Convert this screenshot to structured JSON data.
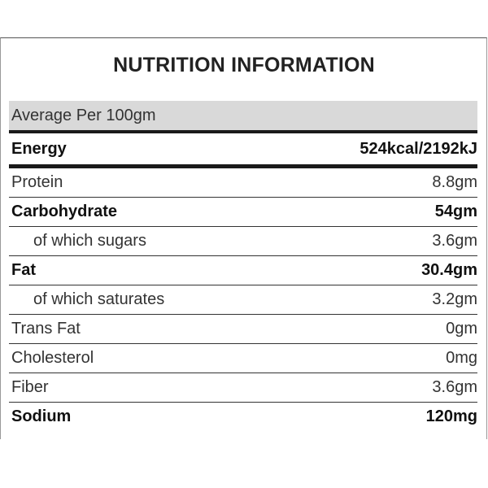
{
  "title": "NUTRITION INFORMATION",
  "header": "Average Per 100gm",
  "rows": [
    {
      "label": "Energy",
      "value": "524kcal/2192kJ"
    },
    {
      "label": "Protein",
      "value": "8.8gm"
    },
    {
      "label": "Carbohydrate",
      "value": "54gm"
    },
    {
      "label": "of which sugars",
      "value": "3.6gm"
    },
    {
      "label": "Fat",
      "value": "30.4gm"
    },
    {
      "label": "of which saturates",
      "value": "3.2gm"
    },
    {
      "label": "Trans Fat",
      "value": "0gm"
    },
    {
      "label": "Cholesterol",
      "value": "0mg"
    },
    {
      "label": "Fiber",
      "value": "3.6gm"
    },
    {
      "label": "Sodium",
      "value": "120mg"
    }
  ]
}
